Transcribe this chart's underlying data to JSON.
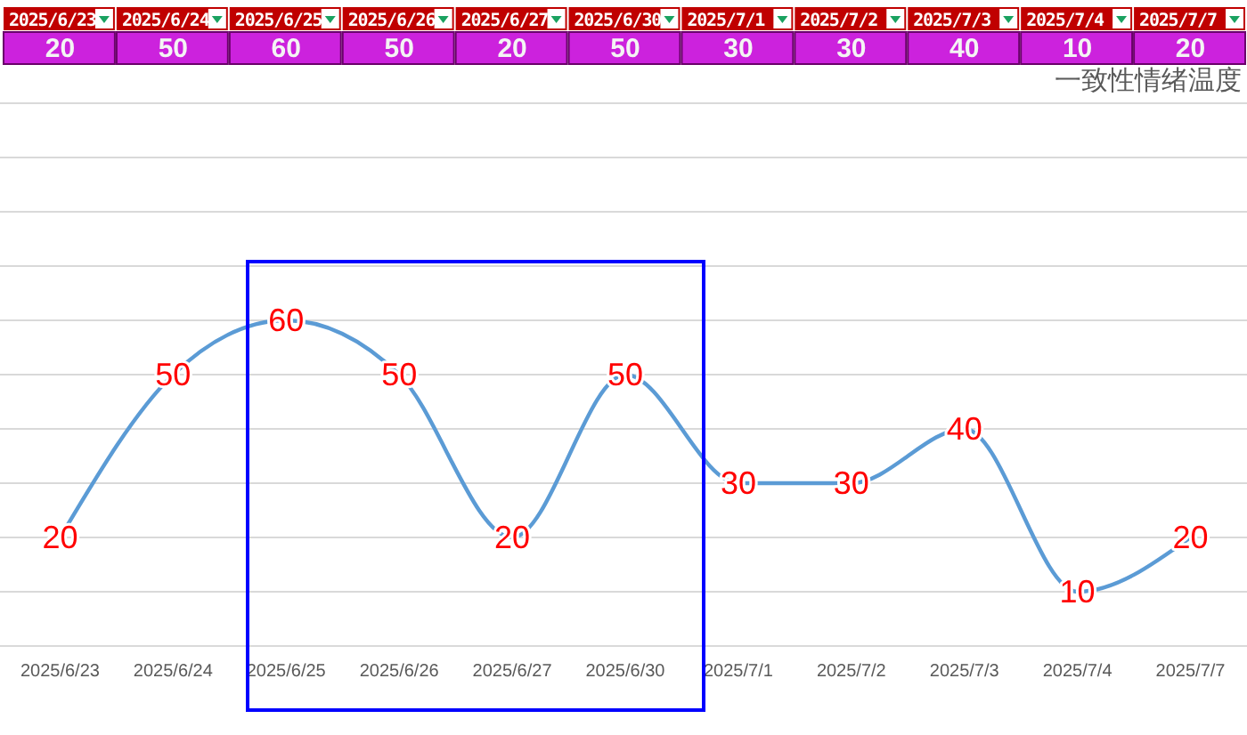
{
  "chart_data": {
    "type": "line",
    "title": "一致性情绪温度",
    "categories": [
      "2025/6/23",
      "2025/6/24",
      "2025/6/25",
      "2025/6/26",
      "2025/6/27",
      "2025/6/30",
      "2025/7/1",
      "2025/7/2",
      "2025/7/3",
      "2025/7/4",
      "2025/7/7"
    ],
    "series": [
      {
        "color": "#5b9bd5",
        "values": [
          20,
          50,
          60,
          50,
          20,
          50,
          30,
          30,
          40,
          10,
          20
        ],
        "value_labels": [
          "20",
          "50",
          "60",
          "50",
          "20",
          "50",
          "30",
          "30",
          "40",
          "10",
          "20"
        ]
      }
    ],
    "ylim": [
      0,
      100
    ],
    "yticks": [
      {
        "value": 0,
        "label": null
      },
      {
        "value": 10,
        "label": null
      },
      {
        "value": 20,
        "label": null
      },
      {
        "value": 30,
        "label": null
      },
      {
        "value": 40,
        "label": null
      },
      {
        "value": 50,
        "label": null
      },
      {
        "value": 60,
        "label": null
      },
      {
        "value": 70,
        "label": null
      },
      {
        "value": 80,
        "label": null
      },
      {
        "value": 90,
        "label": null
      },
      {
        "value": 100,
        "label": null
      }
    ],
    "tick_labels": "x",
    "grid": "y",
    "marker": "none",
    "line_style": "solid",
    "annotations": [
      "20",
      "50",
      "60",
      "50",
      "20",
      "50",
      "30",
      "30",
      "40",
      "10",
      "20"
    ]
  }
}
